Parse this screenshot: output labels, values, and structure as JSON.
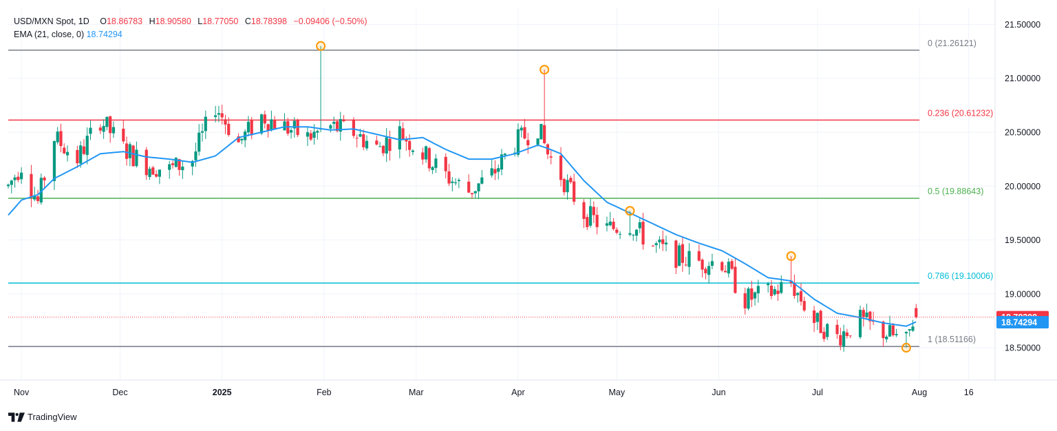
{
  "legend": {
    "symbol": "USD/MXN Spot, 1D",
    "open_label": "O",
    "open": "18.86783",
    "high_label": "H",
    "high": "18.90580",
    "low_label": "L",
    "low": "18.77050",
    "close_label": "C",
    "close": "18.78398",
    "change": "−0.09406 (−0.50%)",
    "ema_label": "EMA (21, close, 0)",
    "ema_value": "18.74294"
  },
  "branding": {
    "logo_icon": "tradingview-logo-icon",
    "name": "TradingView"
  },
  "colors": {
    "up": "#089981",
    "down": "#f23645",
    "ema": "#2196f3",
    "fib_0": "#787b86",
    "fib_236": "#f23645",
    "fib_5": "#4caf50",
    "fib_786": "#00bcd4",
    "fib_1": "#787b86",
    "marker": "#ff9800"
  },
  "chart_data": {
    "type": "candlestick",
    "title": "USD/MXN Spot, 1D",
    "interval": "1D",
    "y_axis": {
      "range": [
        18.2,
        21.65
      ],
      "ticks": [
        "21.50000",
        "21.00000",
        "20.50000",
        "20.00000",
        "19.50000",
        "19.00000",
        "18.50000"
      ],
      "position": "right"
    },
    "x_axis": {
      "ticks": [
        {
          "label": "Nov",
          "date": "2024-11-01",
          "bold": false
        },
        {
          "label": "Dec",
          "date": "2024-12-01",
          "bold": false
        },
        {
          "label": "2025",
          "date": "2025-01-01",
          "bold": true
        },
        {
          "label": "Feb",
          "date": "2025-02-01",
          "bold": false
        },
        {
          "label": "Mar",
          "date": "2025-03-01",
          "bold": false
        },
        {
          "label": "Apr",
          "date": "2025-04-01",
          "bold": false
        },
        {
          "label": "May",
          "date": "2025-05-01",
          "bold": false
        },
        {
          "label": "Jun",
          "date": "2025-06-01",
          "bold": false
        },
        {
          "label": "Jul",
          "date": "2025-07-01",
          "bold": false
        },
        {
          "label": "Aug",
          "date": "2025-08-01",
          "bold": false
        },
        {
          "label": "16",
          "date": "2025-08-16",
          "bold": false
        }
      ]
    },
    "grid": true,
    "last_price": {
      "value": 18.78398,
      "label": "18.78398",
      "color": "#f23645"
    },
    "ema_price": {
      "value": 18.74294,
      "label": "18.74294",
      "color": "#2196f3"
    },
    "fibonacci": [
      {
        "level": "0",
        "value": 21.26121,
        "label": "0 (21.26121)",
        "color": "#787b86"
      },
      {
        "level": "0.236",
        "value": 20.61232,
        "label": "0.236 (20.61232)",
        "color": "#f23645"
      },
      {
        "level": "0.5",
        "value": 19.88643,
        "label": "0.5 (19.88643)",
        "color": "#4caf50"
      },
      {
        "level": "0.786",
        "value": 19.10006,
        "label": "0.786 (19.10006)",
        "color": "#00bcd4"
      },
      {
        "level": "1",
        "value": 18.51166,
        "label": "1 (18.51166)",
        "color": "#787b86"
      }
    ],
    "swing_markers": [
      {
        "date": "2025-01-31",
        "value": 21.3
      },
      {
        "date": "2025-04-09",
        "value": 21.08
      },
      {
        "date": "2025-05-05",
        "value": 19.77
      },
      {
        "date": "2025-06-23",
        "value": 19.35
      },
      {
        "date": "2025-07-28",
        "value": 18.5
      }
    ],
    "anchors": [
      {
        "date": "2024-10-28",
        "close": 20.0,
        "ema": 19.73
      },
      {
        "date": "2024-11-01",
        "close": 20.2,
        "ema": 19.87
      },
      {
        "date": "2024-11-06",
        "close": 19.85,
        "ema": 19.92
      },
      {
        "date": "2024-11-11",
        "close": 20.45,
        "ema": 20.07
      },
      {
        "date": "2024-11-18",
        "close": 20.25,
        "ema": 20.18
      },
      {
        "date": "2024-11-25",
        "close": 20.62,
        "ema": 20.3
      },
      {
        "date": "2024-12-02",
        "close": 20.35,
        "ema": 20.32
      },
      {
        "date": "2024-12-09",
        "close": 20.2,
        "ema": 20.27
      },
      {
        "date": "2024-12-16",
        "close": 20.15,
        "ema": 20.25
      },
      {
        "date": "2024-12-23",
        "close": 20.25,
        "ema": 20.22
      },
      {
        "date": "2024-12-30",
        "close": 20.75,
        "ema": 20.28
      },
      {
        "date": "2025-01-06",
        "close": 20.4,
        "ema": 20.45
      },
      {
        "date": "2025-01-13",
        "close": 20.65,
        "ema": 20.5
      },
      {
        "date": "2025-01-20",
        "close": 20.55,
        "ema": 20.55
      },
      {
        "date": "2025-01-27",
        "close": 20.45,
        "ema": 20.55
      },
      {
        "date": "2025-02-03",
        "close": 20.55,
        "ema": 20.52
      },
      {
        "date": "2025-02-10",
        "close": 20.5,
        "ema": 20.53
      },
      {
        "date": "2025-02-17",
        "close": 20.35,
        "ema": 20.48
      },
      {
        "date": "2025-02-24",
        "close": 20.5,
        "ema": 20.43
      },
      {
        "date": "2025-03-03",
        "close": 20.3,
        "ema": 20.45
      },
      {
        "date": "2025-03-10",
        "close": 20.1,
        "ema": 20.34
      },
      {
        "date": "2025-03-17",
        "close": 19.95,
        "ema": 20.25
      },
      {
        "date": "2025-03-24",
        "close": 20.1,
        "ema": 20.25
      },
      {
        "date": "2025-03-31",
        "close": 20.4,
        "ema": 20.3
      },
      {
        "date": "2025-04-07",
        "close": 20.55,
        "ema": 20.38
      },
      {
        "date": "2025-04-10",
        "close": 20.3,
        "ema": 20.35
      },
      {
        "date": "2025-04-14",
        "close": 20.1,
        "ema": 20.3
      },
      {
        "date": "2025-04-21",
        "close": 19.75,
        "ema": 20.05
      },
      {
        "date": "2025-04-28",
        "close": 19.6,
        "ema": 19.85
      },
      {
        "date": "2025-05-05",
        "close": 19.65,
        "ema": 19.75
      },
      {
        "date": "2025-05-12",
        "close": 19.45,
        "ema": 19.65
      },
      {
        "date": "2025-05-19",
        "close": 19.35,
        "ema": 19.55
      },
      {
        "date": "2025-05-26",
        "close": 19.3,
        "ema": 19.47
      },
      {
        "date": "2025-06-02",
        "close": 19.3,
        "ema": 19.4
      },
      {
        "date": "2025-06-09",
        "close": 18.95,
        "ema": 19.28
      },
      {
        "date": "2025-06-16",
        "close": 19.0,
        "ema": 19.15
      },
      {
        "date": "2025-06-23",
        "close": 19.1,
        "ema": 19.12
      },
      {
        "date": "2025-06-30",
        "close": 18.75,
        "ema": 18.95
      },
      {
        "date": "2025-07-07",
        "close": 18.6,
        "ema": 18.82
      },
      {
        "date": "2025-07-14",
        "close": 18.75,
        "ema": 18.78
      },
      {
        "date": "2025-07-21",
        "close": 18.65,
        "ema": 18.73
      },
      {
        "date": "2025-07-28",
        "close": 18.55,
        "ema": 18.7
      },
      {
        "date": "2025-07-31",
        "close": 18.85,
        "ema": 18.74
      }
    ],
    "last_candle": {
      "open": 18.86783,
      "high": 18.9058,
      "low": 18.7705,
      "close": 18.78398
    }
  }
}
